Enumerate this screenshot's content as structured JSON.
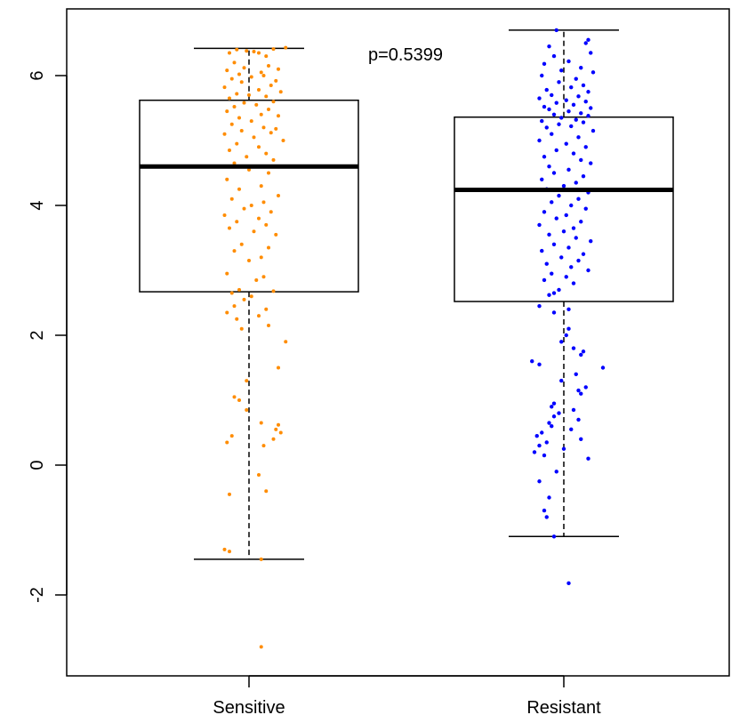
{
  "chart_data": {
    "type": "box",
    "title": "",
    "xlabel": "",
    "ylabel": "",
    "ylim": [
      -3,
      7
    ],
    "y_ticks": [
      "-2",
      "0",
      "2",
      "4",
      "6"
    ],
    "y_tick_values": [
      -2,
      0,
      2,
      4,
      6
    ],
    "annotation": "p=0.5399",
    "grid": false,
    "groups": [
      {
        "name": "Sensitive",
        "color": "#ff8c00",
        "box": {
          "lower_whisker": -1.45,
          "q1": 2.67,
          "median": 4.6,
          "q3": 5.62,
          "upper_whisker": 6.42
        },
        "points": [
          6.4,
          6.37,
          6.35,
          6.3,
          6.41,
          6.38,
          6.35,
          6.43,
          6.2,
          6.15,
          6.12,
          6.1,
          6.08,
          6.05,
          6.02,
          6.0,
          5.98,
          5.95,
          5.92,
          5.9,
          5.85,
          5.82,
          5.78,
          5.75,
          5.72,
          5.7,
          5.68,
          5.65,
          5.6,
          5.58,
          5.55,
          5.52,
          5.48,
          5.45,
          5.4,
          5.38,
          5.35,
          5.3,
          5.25,
          5.2,
          5.18,
          5.15,
          5.12,
          5.1,
          5.05,
          5.0,
          4.95,
          4.9,
          4.85,
          4.8,
          4.75,
          4.7,
          4.65,
          4.6,
          4.55,
          4.5,
          4.4,
          4.3,
          4.25,
          4.15,
          4.1,
          4.05,
          4.0,
          3.95,
          3.9,
          3.85,
          3.8,
          3.75,
          3.7,
          3.65,
          3.6,
          3.55,
          3.4,
          3.35,
          3.3,
          3.2,
          3.15,
          2.95,
          2.9,
          2.85,
          2.7,
          2.68,
          2.65,
          2.6,
          2.55,
          2.45,
          2.4,
          2.35,
          2.3,
          2.25,
          2.15,
          2.1,
          1.9,
          1.5,
          1.3,
          1.05,
          1.0,
          0.85,
          0.65,
          0.62,
          0.55,
          0.5,
          0.45,
          0.4,
          0.35,
          0.3,
          -0.15,
          -0.4,
          -0.45,
          -1.3,
          -1.33,
          -1.45,
          -2.8
        ],
        "jitter": [
          -0.25,
          0.1,
          -0.4,
          0.35,
          0.5,
          -0.05,
          0.2,
          0.75,
          -0.3,
          0.4,
          -0.1,
          0.6,
          -0.45,
          0.25,
          -0.2,
          0.3,
          0.05,
          -0.35,
          0.55,
          -0.15,
          0.45,
          -0.5,
          0.2,
          0.65,
          -0.25,
          0.0,
          0.35,
          -0.4,
          0.5,
          -0.1,
          0.15,
          -0.3,
          0.4,
          -0.45,
          0.25,
          0.6,
          -0.2,
          0.05,
          -0.35,
          0.3,
          0.55,
          -0.15,
          0.45,
          -0.5,
          0.1,
          0.7,
          -0.25,
          0.2,
          -0.4,
          0.35,
          -0.05,
          0.5,
          -0.3,
          0.15,
          0.0,
          0.4,
          -0.45,
          0.25,
          -0.2,
          0.6,
          -0.35,
          0.3,
          0.05,
          -0.1,
          0.45,
          -0.5,
          0.2,
          -0.25,
          0.35,
          -0.4,
          0.1,
          0.55,
          -0.15,
          0.4,
          -0.3,
          0.25,
          0.0,
          -0.45,
          0.3,
          0.15,
          -0.2,
          0.5,
          -0.35,
          0.05,
          -0.1,
          -0.3,
          0.35,
          -0.45,
          0.2,
          -0.25,
          0.4,
          -0.15,
          0.75,
          0.6,
          -0.05,
          -0.3,
          -0.2,
          -0.05,
          0.25,
          0.6,
          0.55,
          0.65,
          -0.35,
          0.5,
          -0.45,
          0.3,
          0.2,
          0.35,
          -0.4,
          -0.5,
          -0.4,
          0.25,
          0.25
        ],
        "point_size": 2
      },
      {
        "name": "Resistant",
        "color": "#0000ff",
        "box": {
          "lower_whisker": -1.1,
          "q1": 2.52,
          "median": 4.24,
          "q3": 5.36,
          "upper_whisker": 6.7
        },
        "points": [
          6.7,
          6.55,
          6.5,
          6.45,
          6.35,
          6.3,
          6.22,
          6.18,
          6.12,
          6.08,
          6.05,
          6.0,
          5.95,
          5.9,
          5.85,
          5.82,
          5.78,
          5.75,
          5.7,
          5.68,
          5.65,
          5.62,
          5.6,
          5.58,
          5.55,
          5.52,
          5.5,
          5.48,
          5.45,
          5.42,
          5.4,
          5.38,
          5.35,
          5.32,
          5.3,
          5.28,
          5.25,
          5.22,
          5.2,
          5.15,
          5.1,
          5.05,
          5.0,
          4.95,
          4.9,
          4.85,
          4.8,
          4.75,
          4.7,
          4.65,
          4.6,
          4.55,
          4.5,
          4.45,
          4.4,
          4.35,
          4.3,
          4.25,
          4.2,
          4.15,
          4.1,
          4.05,
          4.0,
          3.95,
          3.9,
          3.85,
          3.8,
          3.75,
          3.7,
          3.65,
          3.6,
          3.55,
          3.5,
          3.45,
          3.4,
          3.35,
          3.3,
          3.25,
          3.2,
          3.15,
          3.1,
          3.05,
          3.0,
          2.95,
          2.9,
          2.85,
          2.8,
          2.7,
          2.65,
          2.62,
          2.45,
          2.4,
          2.35,
          2.1,
          2.0,
          1.9,
          1.8,
          1.75,
          1.7,
          1.6,
          1.55,
          1.5,
          1.4,
          1.3,
          1.2,
          1.15,
          1.1,
          0.95,
          0.9,
          0.85,
          0.8,
          0.75,
          0.7,
          0.65,
          0.6,
          0.55,
          0.5,
          0.45,
          0.4,
          0.35,
          0.3,
          0.25,
          0.2,
          0.15,
          0.1,
          -0.1,
          -0.25,
          -0.5,
          -0.7,
          -0.8,
          -1.1,
          -1.82
        ],
        "jitter": [
          -0.15,
          0.5,
          0.45,
          -0.3,
          0.55,
          -0.2,
          0.1,
          -0.4,
          0.35,
          -0.05,
          0.6,
          -0.45,
          0.25,
          -0.1,
          0.4,
          0.15,
          -0.35,
          0.5,
          -0.25,
          0.3,
          -0.5,
          0.05,
          0.45,
          -0.15,
          0.2,
          -0.4,
          0.55,
          -0.3,
          0.1,
          0.35,
          -0.2,
          0.5,
          -0.05,
          0.25,
          -0.45,
          0.4,
          -0.1,
          0.15,
          -0.35,
          0.6,
          -0.25,
          0.3,
          -0.5,
          0.05,
          0.45,
          -0.15,
          0.2,
          -0.4,
          0.35,
          0.55,
          -0.3,
          0.1,
          -0.2,
          0.4,
          -0.45,
          0.25,
          0.0,
          -0.35,
          0.5,
          -0.1,
          0.3,
          -0.25,
          0.15,
          0.45,
          -0.4,
          0.05,
          -0.15,
          0.35,
          -0.5,
          0.2,
          0.0,
          -0.3,
          0.25,
          0.55,
          -0.2,
          0.1,
          -0.45,
          0.4,
          -0.05,
          0.3,
          -0.35,
          0.15,
          0.5,
          -0.25,
          0.05,
          -0.4,
          0.2,
          -0.1,
          -0.2,
          -0.3,
          -0.5,
          0.1,
          -0.2,
          0.1,
          0.05,
          -0.05,
          0.2,
          0.4,
          0.35,
          -0.65,
          -0.5,
          0.8,
          0.25,
          -0.05,
          0.45,
          0.3,
          0.35,
          -0.2,
          -0.25,
          0.2,
          -0.1,
          -0.2,
          0.3,
          -0.3,
          -0.25,
          0.15,
          -0.45,
          -0.55,
          0.35,
          -0.35,
          -0.5,
          0.0,
          -0.6,
          -0.4,
          0.5,
          -0.15,
          -0.5,
          -0.3,
          -0.4,
          -0.35,
          -0.2,
          0.1
        ],
        "point_size": 2.2
      }
    ]
  }
}
